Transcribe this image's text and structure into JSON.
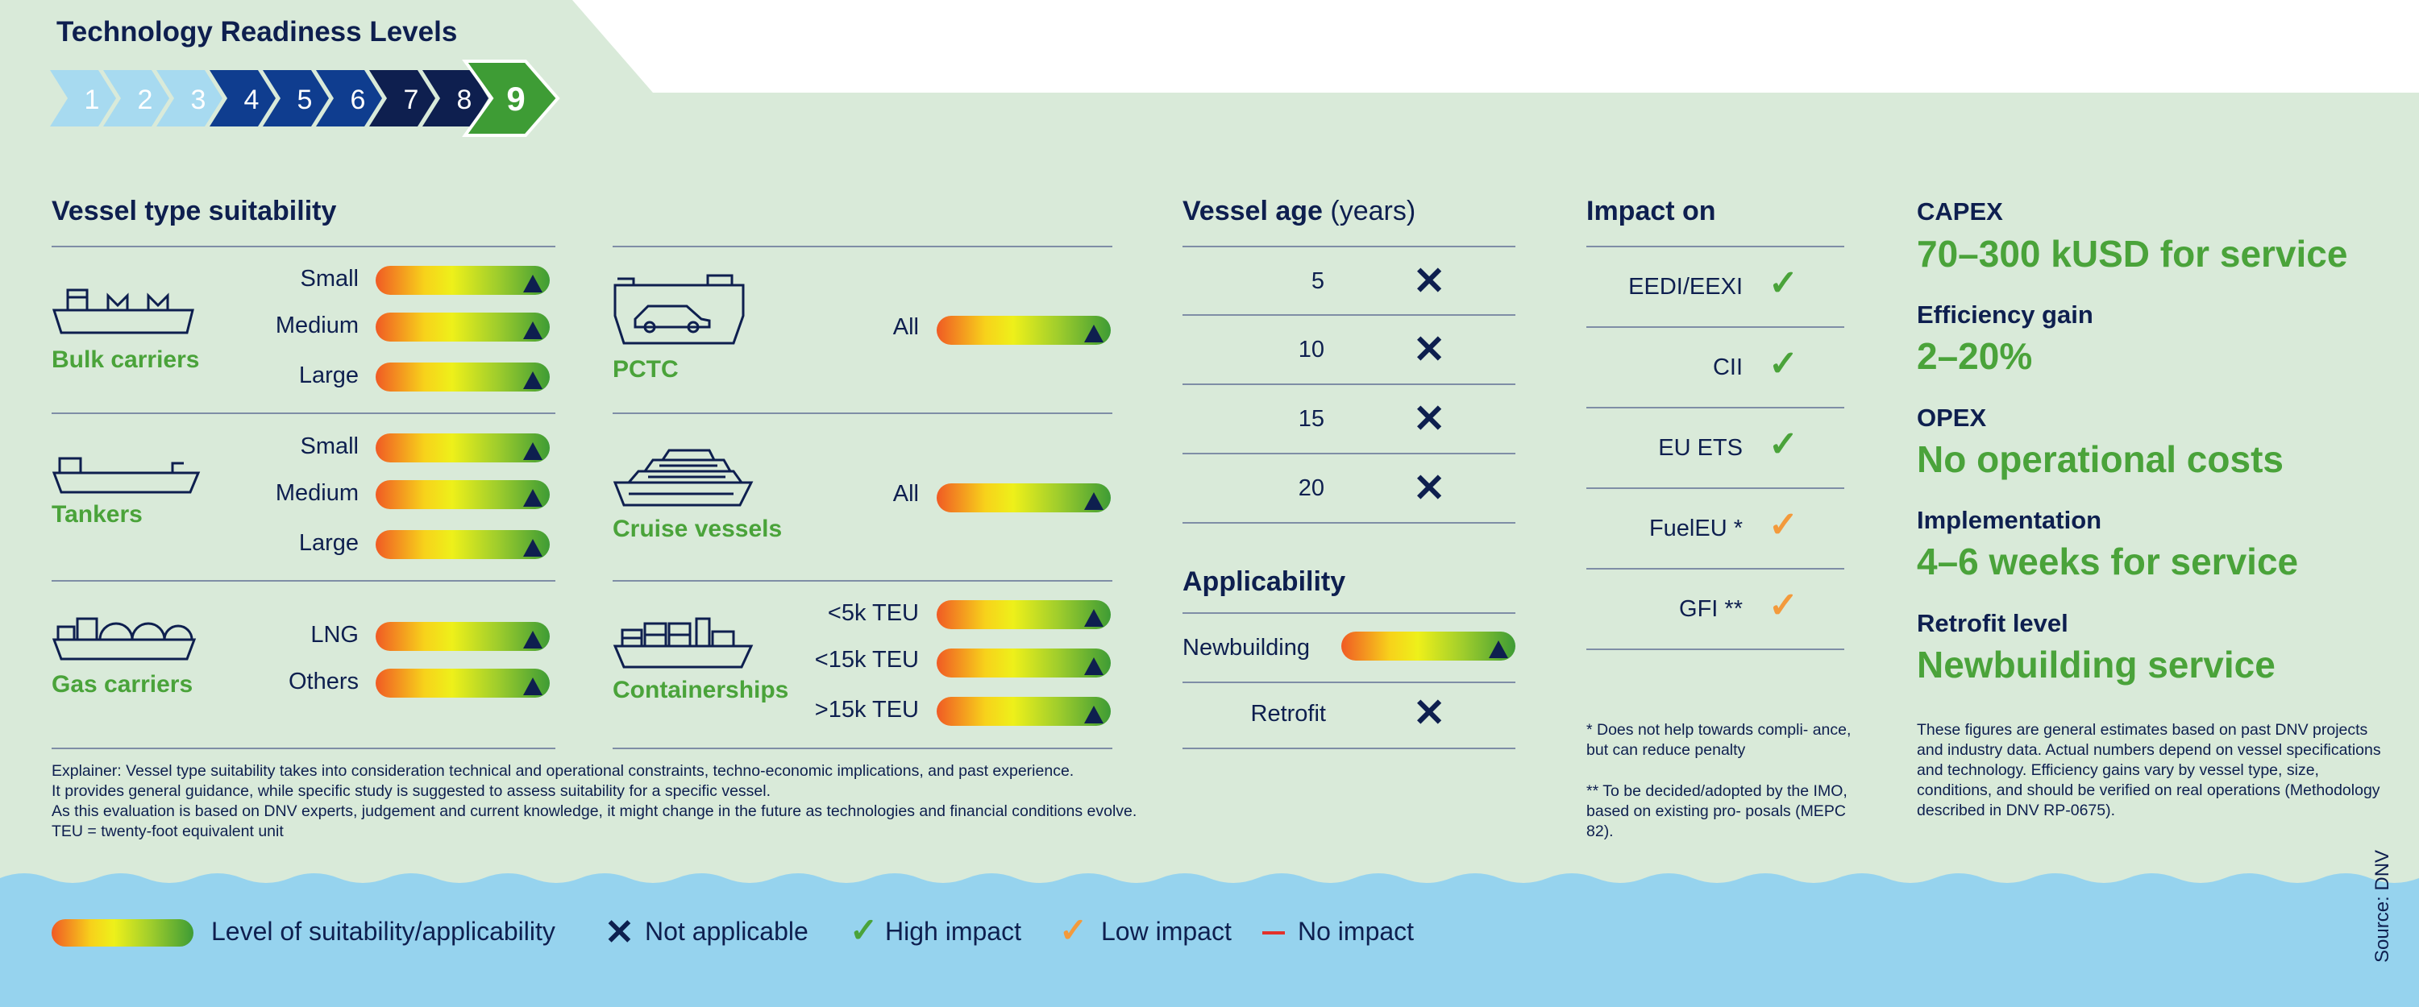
{
  "header": {
    "title": "Technology Readiness Levels",
    "levels": [
      "1",
      "2",
      "3",
      "4",
      "5",
      "6",
      "7",
      "8",
      "9"
    ],
    "active_level": "9"
  },
  "vessel_type": {
    "heading": "Vessel type suitability",
    "bulk": {
      "name": "Bulk carriers",
      "sizes": [
        "Small",
        "Medium",
        "Large"
      ]
    },
    "tankers": {
      "name": "Tankers",
      "sizes": [
        "Small",
        "Medium",
        "Large"
      ]
    },
    "gas": {
      "name": "Gas carriers",
      "sizes": [
        "LNG",
        "Others"
      ]
    },
    "pctc": {
      "name": "PCTC",
      "sizes": [
        "All"
      ]
    },
    "cruise": {
      "name": "Cruise vessels",
      "sizes": [
        "All"
      ]
    },
    "container": {
      "name": "Containerships",
      "sizes": [
        "<5k TEU",
        "<15k TEU",
        ">15k TEU"
      ]
    }
  },
  "vessel_age": {
    "heading": "Vessel age",
    "unit": "(years)",
    "rows": [
      "5",
      "10",
      "15",
      "20"
    ]
  },
  "applicability": {
    "heading": "Applicability",
    "newbuilding": "Newbuilding",
    "retrofit": "Retrofit"
  },
  "impact": {
    "heading": "Impact on",
    "rows": [
      {
        "label": "EEDI/EEXI",
        "level": "high"
      },
      {
        "label": "CII",
        "level": "high"
      },
      {
        "label": "EU ETS",
        "level": "high"
      },
      {
        "label": "FuelEU *",
        "level": "low"
      },
      {
        "label": "GFI **",
        "level": "low"
      }
    ],
    "note1": "* Does not help towards compli- ance, but can reduce penalty",
    "note2": "** To be decided/adopted by the IMO, based on existing pro- posals (MEPC 82)."
  },
  "kpis": {
    "capex_label": "CAPEX",
    "capex_value": "70–300 kUSD for service",
    "efficiency_label": "Efficiency gain",
    "efficiency_value": "2–20%",
    "opex_label": "OPEX",
    "opex_value": "No operational costs",
    "implementation_label": "Implementation",
    "implementation_value": "4–6 weeks for service",
    "retrofit_label": "Retrofit level",
    "retrofit_value": "Newbuilding service",
    "note": "These figures are general estimates based on past DNV projects and industry data. Actual numbers depend on vessel specifications and technology. Efficiency gains vary by vessel type, size, conditions, and should be verified on real operations (Methodology described in DNV RP-0675)."
  },
  "explainer": {
    "line1": "Explainer: Vessel type suitability takes into consideration technical and operational constraints, techno-economic implications, and past experience.",
    "line2": "It provides general guidance, while specific study is suggested to assess suitability for a specific vessel.",
    "line3": "As this evaluation is based on DNV experts, judgement and current knowledge, it might change in the future as technologies and financial conditions evolve.",
    "line4": "TEU = twenty-foot equivalent unit"
  },
  "legend": {
    "suitability": "Level of suitability/applicability",
    "not_applicable": "Not applicable",
    "high": "High impact",
    "low": "Low impact",
    "none": "No impact"
  },
  "source": "Source: DNV",
  "colors": {
    "navy": "#0e1f4f",
    "green": "#4aa33a",
    "orange": "#f39a3c",
    "red": "#e2322b",
    "panel": "#d9ead9",
    "water": "#96d3ee"
  }
}
